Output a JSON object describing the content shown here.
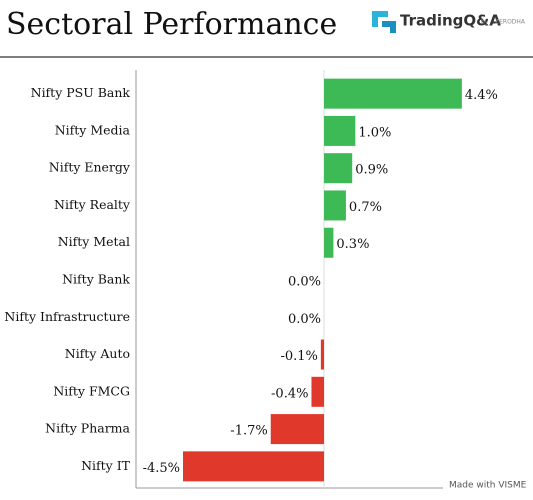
{
  "chart_data": {
    "type": "bar",
    "orientation": "horizontal",
    "title": "Sectoral Performance",
    "brand": "TradingQ&A",
    "brand_by": "by",
    "brand_company": "ZERODHA",
    "footer": "Made with VISME",
    "categories": [
      "Nifty PSU Bank",
      "Nifty Media",
      "Nifty Energy",
      "Nifty Realty",
      "Nifty Metal",
      "Nifty Bank",
      "Nifty Infrastructure",
      "Nifty Auto",
      "Nifty FMCG",
      "Nifty Pharma",
      "Nifty IT"
    ],
    "values": [
      4.4,
      1.0,
      0.9,
      0.7,
      0.3,
      0.0,
      0.0,
      -0.1,
      -0.4,
      -1.7,
      -4.5
    ],
    "value_labels": [
      "4.4%",
      "1.0%",
      "0.9%",
      "0.7%",
      "0.3%",
      "0.0%",
      "0.0%",
      "-0.1%",
      "-0.4%",
      "-1.7%",
      "-4.5%"
    ],
    "positive_color": "#3dba55",
    "negative_color": "#e0392b",
    "xlim": [
      -6,
      6
    ]
  }
}
